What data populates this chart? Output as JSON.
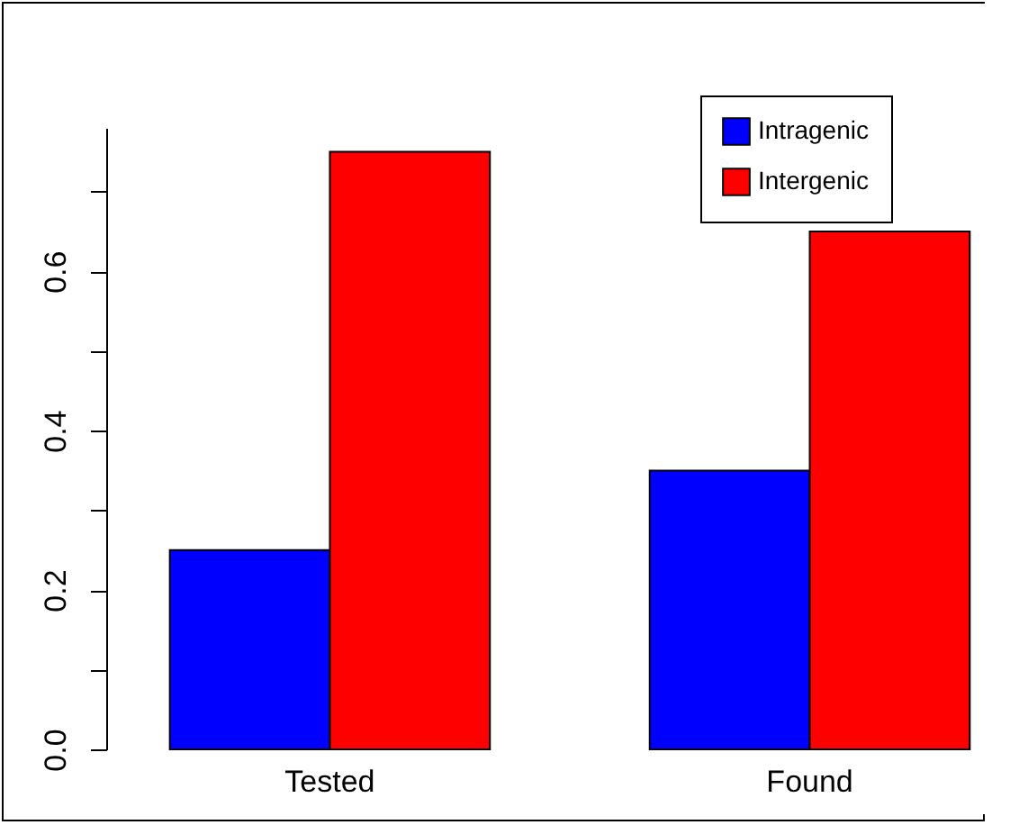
{
  "chart_data": {
    "type": "bar",
    "categories": [
      "Tested",
      "Found"
    ],
    "series": [
      {
        "name": "Intragenic",
        "color": "#0000ff",
        "values": [
          0.25,
          0.35
        ]
      },
      {
        "name": "Intergenic",
        "color": "#ff0000",
        "values": [
          0.75,
          0.65
        ]
      }
    ],
    "ylim": [
      0,
      0.78
    ],
    "yticks": [
      {
        "value": 0,
        "label": "0.0"
      },
      {
        "value": 0.1,
        "label": null
      },
      0.2,
      {
        "value": 0.3,
        "label": null
      },
      0.4,
      {
        "value": 0.5,
        "label": null
      },
      0.6,
      {
        "value": 0.7,
        "label": null
      }
    ],
    "legend": "top right",
    "grid": false
  }
}
